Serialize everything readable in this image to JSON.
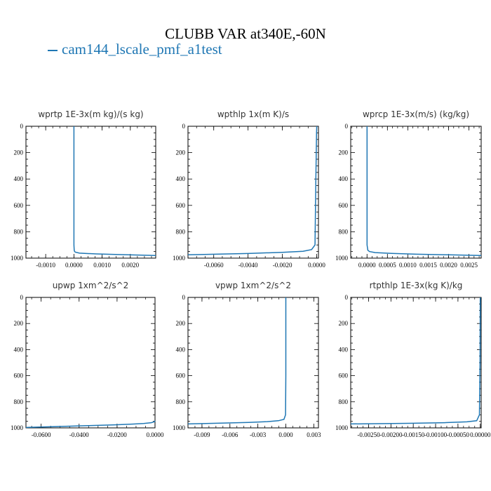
{
  "title": "CLUBB VAR at340E,-60N",
  "legend": {
    "label": "cam144_lscale_pmf_a1test",
    "color": "#1f77b4"
  },
  "chart_data": [
    {
      "type": "line",
      "title": "wprtp  1E-3x(m kg)/(s kg)",
      "xlim": [
        -0.0017,
        0.0029
      ],
      "ylim": [
        0,
        1000
      ],
      "y_inverted": true,
      "xticks": [
        -0.001,
        0.0,
        0.001,
        0.002
      ],
      "xtick_labels": [
        "-0.0010",
        "0.0000",
        "0.0010",
        "0.0020"
      ],
      "yticks": [
        0,
        200,
        400,
        600,
        800,
        1000
      ],
      "ytick_labels": [
        "0",
        "200",
        "400",
        "600",
        "800",
        "1000"
      ],
      "series": [
        {
          "x": [
            0.0,
            0.0,
            0.0,
            1e-05,
            2e-05,
            5e-05,
            0.0002,
            0.0008,
            0.0018,
            0.0029
          ],
          "y": [
            0,
            600,
            900,
            940,
            948,
            955,
            962,
            968,
            974,
            980
          ]
        }
      ]
    },
    {
      "type": "line",
      "title": "wpthlp  1x(m K)/s",
      "xlim": [
        -0.0075,
        0.0001
      ],
      "ylim": [
        0,
        1000
      ],
      "y_inverted": true,
      "xticks": [
        -0.006,
        -0.004,
        -0.002,
        0.0
      ],
      "xtick_labels": [
        "-0.0060",
        "-0.0040",
        "-0.0020",
        "0.0000"
      ],
      "yticks": [
        0,
        200,
        400,
        600,
        800,
        1000
      ],
      "ytick_labels": [
        "0",
        "200",
        "400",
        "600",
        "800",
        "1000"
      ],
      "series": [
        {
          "x": [
            0.0,
            -1e-05,
            -5e-05,
            -0.0001,
            -0.0003,
            -0.0008,
            -0.002,
            -0.004,
            -0.0075
          ],
          "y": [
            0,
            50,
            400,
            900,
            935,
            948,
            956,
            965,
            975
          ]
        }
      ]
    },
    {
      "type": "line",
      "title": "wprcp  1E-3x(m/s) (kg/kg)",
      "xlim": [
        -0.0004,
        0.0028
      ],
      "ylim": [
        0,
        1000
      ],
      "y_inverted": true,
      "xticks": [
        0.0,
        0.0005,
        0.001,
        0.0015,
        0.002,
        0.0025
      ],
      "xtick_labels": [
        "0.0000",
        "0.0005",
        "0.0010",
        "0.0015",
        "0.0020",
        "0.0025"
      ],
      "yticks": [
        0,
        200,
        400,
        600,
        800,
        1000
      ],
      "ytick_labels": [
        "0",
        "200",
        "400",
        "600",
        "800",
        "1000"
      ],
      "series": [
        {
          "x": [
            0.0,
            0.0,
            0.0,
            2e-05,
            6e-05,
            0.0002,
            0.0006,
            0.0012,
            0.002,
            0.0028
          ],
          "y": [
            0,
            600,
            900,
            940,
            950,
            958,
            964,
            970,
            975,
            980
          ]
        }
      ]
    },
    {
      "type": "line",
      "title": "upwp  1xm^2/s^2",
      "xlim": [
        -0.068,
        0.0
      ],
      "ylim": [
        0,
        1000
      ],
      "y_inverted": true,
      "xticks": [
        -0.06,
        -0.04,
        -0.02,
        0.0
      ],
      "xtick_labels": [
        "-0.0600",
        "-0.0400",
        "-0.0200",
        "0.0000"
      ],
      "yticks": [
        0,
        200,
        400,
        600,
        800,
        1000
      ],
      "ytick_labels": [
        "0",
        "200",
        "400",
        "600",
        "800",
        "1000"
      ],
      "series": [
        {
          "x": [
            0.0,
            -0.0003,
            -0.002,
            -0.006,
            -0.012,
            -0.022,
            -0.035,
            -0.05,
            -0.068
          ],
          "y": [
            945,
            953,
            960,
            966,
            971,
            977,
            983,
            989,
            997
          ]
        }
      ]
    },
    {
      "type": "line",
      "title": "vpwp  1xm^2/s^2",
      "xlim": [
        -0.0105,
        0.0035
      ],
      "ylim": [
        0,
        1000
      ],
      "y_inverted": true,
      "xticks": [
        -0.009,
        -0.006,
        -0.003,
        0.0,
        0.003
      ],
      "xtick_labels": [
        "-0.009",
        "-0.006",
        "-0.003",
        "0.000",
        "0.003"
      ],
      "yticks": [
        0,
        200,
        400,
        600,
        800,
        1000
      ],
      "ytick_labels": [
        "0",
        "200",
        "400",
        "600",
        "800",
        "1000"
      ],
      "series": [
        {
          "x": [
            0.0,
            0.0,
            -3e-05,
            -0.0002,
            -0.0008,
            -0.002,
            -0.004,
            -0.007,
            -0.0105
          ],
          "y": [
            0,
            600,
            900,
            935,
            945,
            952,
            958,
            964,
            970
          ]
        }
      ]
    },
    {
      "type": "line",
      "title": "rtpthlp  1E-3x(kg K)/kg",
      "xlim": [
        -0.0029,
        2e-05
      ],
      "ylim": [
        0,
        1000
      ],
      "y_inverted": true,
      "xticks": [
        -0.0025,
        -0.002,
        -0.0015,
        -0.001,
        -0.0005,
        0.0
      ],
      "xtick_labels": [
        "-0.00250",
        "-0.00200",
        "-0.00150",
        "-0.00100",
        "-0.00050",
        "0.00000"
      ],
      "yticks": [
        0,
        200,
        400,
        600,
        800,
        1000
      ],
      "ytick_labels": [
        "0",
        "200",
        "400",
        "600",
        "800",
        "1000"
      ],
      "series": [
        {
          "x": [
            0.0,
            -5e-06,
            -2e-05,
            -8e-05,
            -0.0003,
            -0.0008,
            -0.0016,
            -0.0029
          ],
          "y": [
            0,
            500,
            900,
            945,
            954,
            960,
            965,
            970
          ]
        }
      ]
    }
  ]
}
